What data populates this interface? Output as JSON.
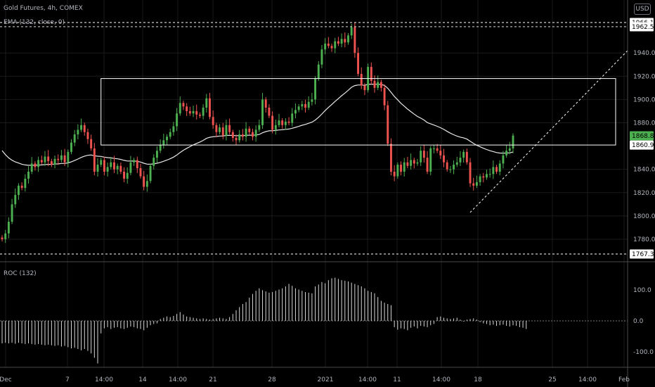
{
  "header": {
    "symbol_line": "Gold Futures, 4h, COMEX",
    "indicator_line": "EMA (132, close, 0)",
    "currency_button": "USD"
  },
  "colors": {
    "background": "#000000",
    "up": "#26a69a",
    "up_bright": "#4caf50",
    "down": "#ef5350",
    "ema": "#e8e8e8",
    "roc": "#d8d8d8",
    "annotation": "#ffffff",
    "grid": "#1a1a1a",
    "axis_text": "#b2b5be"
  },
  "chart_data": [
    {
      "type": "candlestick",
      "title": "Gold Futures, 4h, COMEX",
      "overlay": "EMA (132, close, 0)",
      "y_axis": {
        "ticks": [
          "1940.0",
          "1920.0",
          "1900.0",
          "1880.0",
          "1840.0",
          "1820.0",
          "1800.0",
          "1780.0"
        ],
        "tick_values": [
          1940,
          1920,
          1900,
          1880,
          1840,
          1820,
          1800,
          1780
        ],
        "range": [
          1767,
          1972
        ]
      },
      "x_axis": {
        "ticks": [
          "Dec",
          "7",
          "14:00",
          "14",
          "14:00",
          "21",
          "28",
          "2021",
          "14:00",
          "11",
          "14:00",
          "18",
          "25",
          "14:00",
          "Feb"
        ],
        "grid": true
      },
      "price_tags": [
        {
          "label": "1966.1",
          "value": 1966.1,
          "style": "white"
        },
        {
          "label": "1962.5",
          "value": 1962.5,
          "style": "white"
        },
        {
          "label": "1868.8",
          "value": 1868.8,
          "style": "green"
        },
        {
          "label": "1860.9",
          "value": 1860.9,
          "style": "white"
        },
        {
          "label": "1767.3",
          "value": 1767.3,
          "style": "white"
        }
      ],
      "horizontal_lines": [
        {
          "value": 1966.1,
          "style": "dashed"
        },
        {
          "value": 1962.5,
          "style": "dashed"
        },
        {
          "value": 1767.3,
          "style": "dashed"
        }
      ],
      "range_box": {
        "top": 1918,
        "bottom": 1860.9
      },
      "closes": [
        1780,
        1785,
        1795,
        1810,
        1818,
        1826,
        1824,
        1832,
        1838,
        1845,
        1842,
        1848,
        1846,
        1851,
        1847,
        1844,
        1849,
        1848,
        1852,
        1846,
        1855,
        1863,
        1870,
        1874,
        1878,
        1872,
        1866,
        1858,
        1838,
        1844,
        1848,
        1838,
        1842,
        1846,
        1840,
        1843,
        1838,
        1832,
        1837,
        1846,
        1848,
        1841,
        1834,
        1825,
        1830,
        1843,
        1850,
        1856,
        1861,
        1865,
        1868,
        1872,
        1877,
        1888,
        1897,
        1894,
        1890,
        1888,
        1890,
        1887,
        1886,
        1893,
        1901,
        1885,
        1878,
        1872,
        1876,
        1869,
        1878,
        1872,
        1867,
        1865,
        1870,
        1868,
        1875,
        1872,
        1868,
        1874,
        1878,
        1900,
        1893,
        1886,
        1874,
        1878,
        1882,
        1878,
        1881,
        1880,
        1888,
        1891,
        1894,
        1896,
        1893,
        1898,
        1900,
        1918,
        1930,
        1943,
        1948,
        1946,
        1944,
        1950,
        1948,
        1952,
        1949,
        1955,
        1962,
        1940,
        1922,
        1912,
        1908,
        1928,
        1916,
        1910,
        1915,
        1910,
        1895,
        1862,
        1838,
        1834,
        1844,
        1838,
        1846,
        1843,
        1848,
        1845,
        1846,
        1856,
        1850,
        1838,
        1858,
        1858,
        1856,
        1852,
        1846,
        1840,
        1840,
        1844,
        1846,
        1850,
        1855,
        1846,
        1828,
        1826,
        1829,
        1834,
        1833,
        1836,
        1836,
        1842,
        1838,
        1845,
        1852,
        1856,
        1858,
        1869
      ]
    },
    {
      "type": "bar",
      "title": "ROC (132)",
      "y_axis": {
        "ticks": [
          "100.0",
          "0.0",
          "-100.0"
        ],
        "tick_values": [
          100,
          0,
          -100
        ]
      },
      "zero_line": true,
      "values": [
        -72,
        -70,
        -72,
        -70,
        -73,
        -70,
        -72,
        -74,
        -72,
        -74,
        -76,
        -74,
        -76,
        -78,
        -76,
        -78,
        -80,
        -78,
        -82,
        -80,
        -84,
        -88,
        -86,
        -90,
        -94,
        -90,
        -96,
        -104,
        -118,
        -136,
        -40,
        -24,
        -20,
        -26,
        -22,
        -20,
        -24,
        -26,
        -22,
        -18,
        -20,
        -24,
        -26,
        -30,
        -22,
        -14,
        -10,
        -8,
        6,
        10,
        14,
        12,
        16,
        22,
        28,
        20,
        14,
        12,
        10,
        8,
        6,
        8,
        6,
        4,
        6,
        8,
        10,
        8,
        6,
        12,
        22,
        34,
        44,
        54,
        60,
        74,
        86,
        96,
        104,
        98,
        94,
        90,
        92,
        96,
        100,
        104,
        110,
        118,
        112,
        104,
        100,
        96,
        92,
        90,
        88,
        110,
        116,
        124,
        120,
        130,
        136,
        138,
        134,
        130,
        128,
        126,
        122,
        118,
        114,
        110,
        104,
        96,
        92,
        88,
        76,
        64,
        58,
        54,
        50,
        -20,
        -28,
        -24,
        -26,
        -30,
        -22,
        -18,
        -24,
        -16,
        -18,
        -20,
        -14,
        -10,
        12,
        14,
        10,
        8,
        6,
        8,
        10,
        4,
        -2,
        4,
        6,
        8,
        4,
        -4,
        -8,
        -10,
        -14,
        -12,
        -16,
        -14,
        -12,
        -16,
        -18,
        -14,
        -16,
        -20,
        -22,
        -26
      ]
    }
  ]
}
